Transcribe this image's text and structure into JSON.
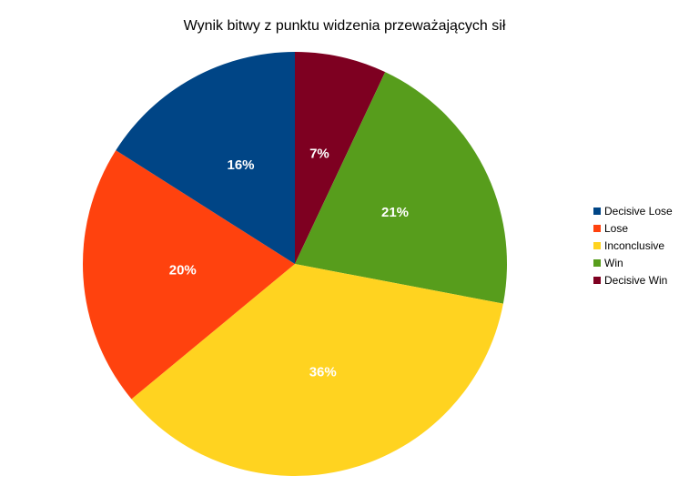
{
  "chart_data": {
    "type": "pie",
    "title": "Wynik bitwy z punktu widzenia przeważających sił",
    "categories": [
      "Decisive Lose",
      "Lose",
      "Inconclusive",
      "Win",
      "Decisive Win"
    ],
    "values": [
      16,
      20,
      36,
      21,
      7
    ],
    "labels": [
      "16%",
      "20%",
      "36%",
      "21%",
      "7%"
    ],
    "colors": [
      "#004586",
      "#ff420e",
      "#ffd320",
      "#579d1c",
      "#7e0021"
    ],
    "legend_position": "right"
  }
}
